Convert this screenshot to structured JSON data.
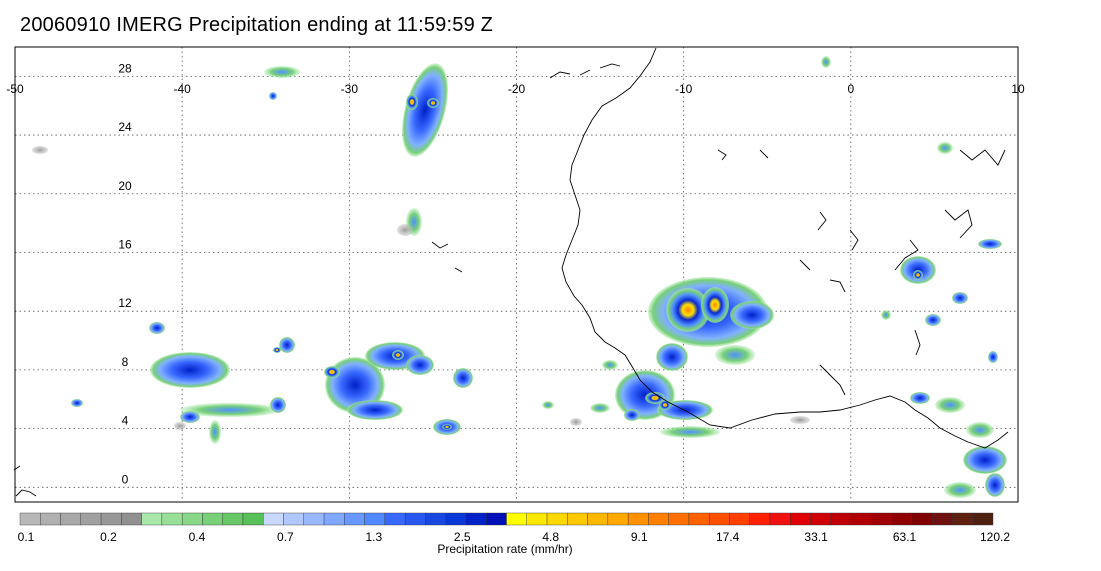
{
  "header": {
    "title": "20060910 IMERG Precipitation ending at 11:59:59 Z"
  },
  "map": {
    "lon_ticks": [
      "-50",
      "-40",
      "-30",
      "-20",
      "-10",
      "0",
      "10"
    ],
    "lat_ticks": [
      "28",
      "24",
      "20",
      "16",
      "12",
      "8",
      "4",
      "0"
    ],
    "lon_range": [
      -50,
      10
    ],
    "lat_range": [
      -1,
      30
    ],
    "grid": "dotted"
  },
  "legend": {
    "title": "Precipitation rate (mm/hr)",
    "tick_labels": [
      "0.1",
      "0.2",
      "0.4",
      "0.7",
      "1.3",
      "2.5",
      "4.8",
      "9.1",
      "17.4",
      "33.1",
      "63.1",
      "120.2"
    ],
    "colors": [
      "#b8b8b8",
      "#b0b0b0",
      "#a8a8a8",
      "#a0a0a0",
      "#989898",
      "#909090",
      "#a8e8a8",
      "#98e098",
      "#88d888",
      "#78d078",
      "#68c868",
      "#58c058",
      "#c8d8ff",
      "#b0c8ff",
      "#98b8ff",
      "#80a8ff",
      "#6898ff",
      "#5088ff",
      "#3868ff",
      "#2858f0",
      "#1848e0",
      "#0838d8",
      "#0020c8",
      "#0010b8",
      "#ffff00",
      "#ffe800",
      "#ffd800",
      "#ffc800",
      "#ffb800",
      "#ffa800",
      "#ff9000",
      "#ff8000",
      "#ff7000",
      "#ff6000",
      "#ff5000",
      "#ff4000",
      "#ff2000",
      "#f01010",
      "#e00000",
      "#d00000",
      "#c00000",
      "#b00000",
      "#a00000",
      "#900000",
      "#800000",
      "#701010",
      "#602010",
      "#502010"
    ]
  }
}
